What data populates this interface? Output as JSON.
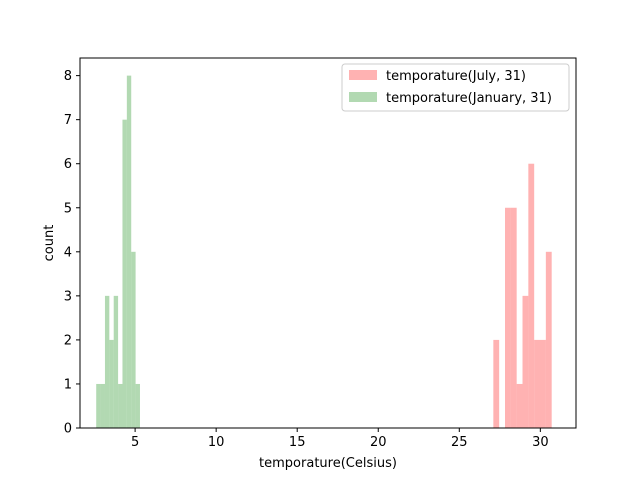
{
  "chart_data": {
    "type": "bar",
    "title": "",
    "xlabel": "temporature(Celsius)",
    "ylabel": "count",
    "xlim": [
      1.6,
      32.2
    ],
    "ylim": [
      0,
      8.4
    ],
    "xticks": [
      5,
      10,
      15,
      20,
      25,
      30
    ],
    "yticks": [
      0,
      1,
      2,
      3,
      4,
      5,
      6,
      7,
      8
    ],
    "grid": false,
    "legend_position": "top-right",
    "series": [
      {
        "name": "temporature(July, 31)",
        "color": "#ff7f7f",
        "opacity": 0.6,
        "bin_start": 27.1,
        "bin_width": 0.36,
        "counts": [
          2,
          0,
          5,
          5,
          1,
          3,
          6,
          2,
          2,
          4
        ]
      },
      {
        "name": "temporature(January, 31)",
        "color": "#7fbf7f",
        "opacity": 0.6,
        "bin_start": 2.6,
        "bin_width": 0.27,
        "counts": [
          1,
          1,
          3,
          2,
          3,
          1,
          7,
          8,
          4,
          1
        ]
      }
    ]
  }
}
